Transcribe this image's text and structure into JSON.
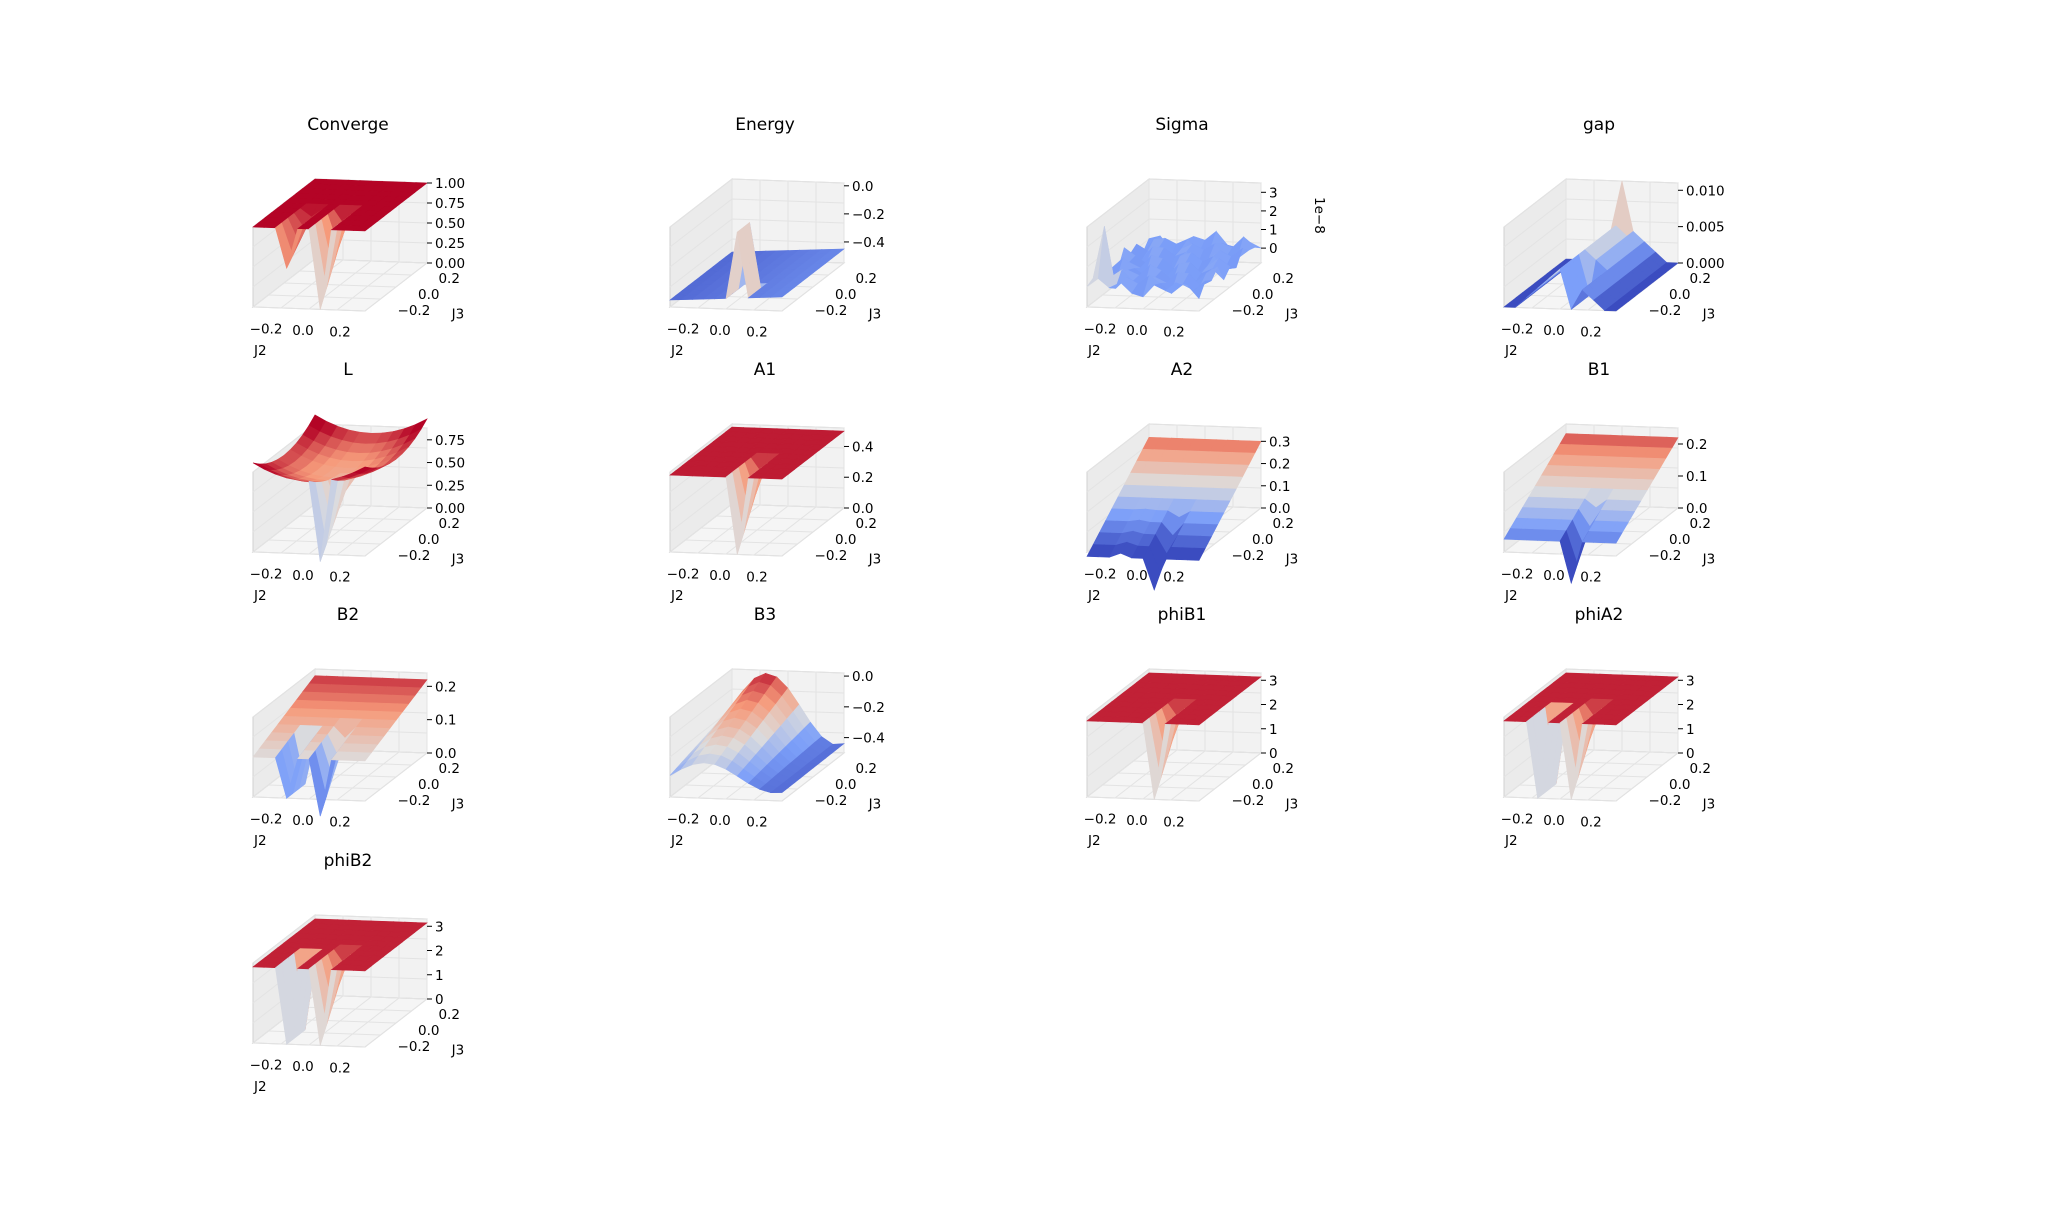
{
  "chart_data": [
    {
      "type": "surface",
      "title": "Converge",
      "xlabel": "J2",
      "ylabel": "J3",
      "x_ticks": [
        "−0.2",
        "0.0",
        "0.2"
      ],
      "y_ticks": [
        "−0.2",
        "0.0",
        "0.2"
      ],
      "z_ticks": [
        "0.00",
        "0.25",
        "0.50",
        "0.75",
        "1.00"
      ],
      "z_range": [
        0,
        1
      ],
      "z_offset_text": "",
      "surface": {
        "kind": "plateau",
        "base": 1.0,
        "dips": [
          {
            "col": 3,
            "depth": 0.5
          },
          {
            "col": 6,
            "depth": 1.0
          }
        ],
        "wall": null
      }
    },
    {
      "type": "surface",
      "title": "Energy",
      "xlabel": "J2",
      "ylabel": "J3",
      "x_ticks": [
        "−0.2",
        "0.0",
        "0.2"
      ],
      "y_ticks": [
        "−0.2",
        "0.0",
        "0.2"
      ],
      "z_ticks": [
        "0.0",
        "−0.2",
        "−0.4"
      ],
      "z_range": [
        -0.55,
        0.02
      ],
      "z_offset_text": "",
      "surface": {
        "kind": "energy",
        "base": -0.5,
        "spike_col": 6,
        "spike_to": 0.0
      }
    },
    {
      "type": "surface",
      "title": "Sigma",
      "xlabel": "J2",
      "ylabel": "J3",
      "x_ticks": [
        "−0.2",
        "0.0",
        "0.2"
      ],
      "y_ticks": [
        "−0.2",
        "0.0",
        "0.2"
      ],
      "z_ticks": [
        "0",
        "1",
        "2",
        "3"
      ],
      "z_range": [
        -0.8,
        3.5
      ],
      "z_offset_text": "1e−8",
      "surface": {
        "kind": "noise",
        "base": 0.3,
        "amp": 0.6,
        "spike_col": 1,
        "spike_row": 1,
        "spike_to": 3.3
      }
    },
    {
      "type": "surface",
      "title": "gap",
      "xlabel": "J2",
      "ylabel": "J3",
      "x_ticks": [
        "−0.2",
        "0.0",
        "0.2"
      ],
      "y_ticks": [
        "−0.2",
        "0.0",
        "0.2"
      ],
      "z_ticks": [
        "0.000",
        "0.005",
        "0.010"
      ],
      "z_range": [
        0,
        0.011
      ],
      "z_offset_text": "",
      "surface": {
        "kind": "ridge",
        "ridge_col": 5,
        "ridge_height": 0.0055,
        "spike_to": 0.011,
        "dip_col": 6
      }
    },
    {
      "type": "surface",
      "title": "L",
      "xlabel": "J2",
      "ylabel": "J3",
      "x_ticks": [
        "−0.2",
        "0.0",
        "0.2"
      ],
      "y_ticks": [
        "−0.2",
        "0.0",
        "0.2"
      ],
      "z_ticks": [
        "0.00",
        "0.25",
        "0.50",
        "0.75"
      ],
      "z_range": [
        0,
        0.88
      ],
      "z_offset_text": "",
      "surface": {
        "kind": "bowl",
        "base": 0.62,
        "curv": 0.18,
        "dips": [
          {
            "col": 6,
            "depth": 0.7
          }
        ],
        "wall": null
      }
    },
    {
      "type": "surface",
      "title": "A1",
      "xlabel": "J2",
      "ylabel": "J3",
      "x_ticks": [
        "−0.2",
        "0.0",
        "0.2"
      ],
      "y_ticks": [
        "−0.2",
        "0.0",
        "0.2"
      ],
      "z_ticks": [
        "0.0",
        "0.2",
        "0.4"
      ],
      "z_range": [
        0,
        0.52
      ],
      "z_offset_text": "",
      "surface": {
        "kind": "plateau",
        "base": 0.5,
        "dips": [
          {
            "col": 6,
            "depth": 0.5
          }
        ],
        "wall": null
      }
    },
    {
      "type": "surface",
      "title": "A2",
      "xlabel": "J2",
      "ylabel": "J3",
      "x_ticks": [
        "−0.2",
        "0.0",
        "0.2"
      ],
      "y_ticks": [
        "−0.2",
        "0.0",
        "0.2"
      ],
      "z_ticks": [
        "0.0",
        "0.1",
        "0.2",
        "0.3"
      ],
      "z_range": [
        0,
        0.36
      ],
      "z_offset_text": "",
      "surface": {
        "kind": "tilt",
        "base": 0.14,
        "slope": 0.16,
        "dips": [
          {
            "col": 3,
            "depth": 0.14
          },
          {
            "col": 6,
            "depth": 0.3
          }
        ],
        "wall": null
      }
    },
    {
      "type": "surface",
      "title": "B1",
      "xlabel": "J2",
      "ylabel": "J3",
      "x_ticks": [
        "−0.2",
        "0.0",
        "0.2"
      ],
      "y_ticks": [
        "−0.2",
        "0.0",
        "0.2"
      ],
      "z_ticks": [
        "0.0",
        "0.1",
        "0.2"
      ],
      "z_range": [
        0,
        0.25
      ],
      "z_offset_text": "",
      "surface": {
        "kind": "tilt",
        "base": 0.13,
        "slope": 0.09,
        "dips": [
          {
            "col": 6,
            "depth": 0.22
          }
        ],
        "wall": null
      }
    },
    {
      "type": "surface",
      "title": "B2",
      "xlabel": "J2",
      "ylabel": "J3",
      "x_ticks": [
        "−0.2",
        "0.0",
        "0.2"
      ],
      "y_ticks": [
        "−0.2",
        "0.0",
        "0.2"
      ],
      "z_ticks": [
        "0.0",
        "0.1",
        "0.2"
      ],
      "z_range": [
        0,
        0.24
      ],
      "z_offset_text": "",
      "surface": {
        "kind": "tilt",
        "base": 0.17,
        "slope": 0.05,
        "dips": [
          {
            "col": 6,
            "depth": 0.22
          }
        ],
        "wall": {
          "col": 3,
          "rows_from": 3,
          "to": 0
        }
      }
    },
    {
      "type": "surface",
      "title": "B3",
      "xlabel": "J2",
      "ylabel": "J3",
      "x_ticks": [
        "−0.2",
        "0.0",
        "0.2"
      ],
      "y_ticks": [
        "−0.2",
        "0.0",
        "0.2"
      ],
      "z_ticks": [
        "0.0",
        "−0.2",
        "−0.4"
      ],
      "z_range": [
        -0.5,
        0.02
      ],
      "z_offset_text": "",
      "surface": {
        "kind": "fold",
        "high": 0.0,
        "low": -0.45
      }
    },
    {
      "type": "surface",
      "title": "phiB1",
      "xlabel": "J2",
      "ylabel": "J3",
      "x_ticks": [
        "−0.2",
        "0.0",
        "0.2"
      ],
      "y_ticks": [
        "−0.2",
        "0.0",
        "0.2"
      ],
      "z_ticks": [
        "0",
        "1",
        "2",
        "3"
      ],
      "z_range": [
        0,
        3.3
      ],
      "z_offset_text": "",
      "surface": {
        "kind": "plateau",
        "base": 3.14,
        "dips": [
          {
            "col": 6,
            "depth": 3.14
          }
        ],
        "wall": null
      }
    },
    {
      "type": "surface",
      "title": "phiA2",
      "xlabel": "J2",
      "ylabel": "J3",
      "x_ticks": [
        "−0.2",
        "0.0",
        "0.2"
      ],
      "y_ticks": [
        "−0.2",
        "0.0",
        "0.2"
      ],
      "z_ticks": [
        "0",
        "1",
        "2",
        "3"
      ],
      "z_range": [
        0,
        3.3
      ],
      "z_offset_text": "",
      "surface": {
        "kind": "plateau",
        "base": 3.14,
        "dips": [
          {
            "col": 6,
            "depth": 3.14
          }
        ],
        "wall": {
          "col": 3,
          "rows_from": 3,
          "to": 0
        }
      }
    },
    {
      "type": "surface",
      "title": "phiB2",
      "xlabel": "J2",
      "ylabel": "J3",
      "x_ticks": [
        "−0.2",
        "0.0",
        "0.2"
      ],
      "y_ticks": [
        "−0.2",
        "0.0",
        "0.2"
      ],
      "z_ticks": [
        "0",
        "1",
        "2",
        "3"
      ],
      "z_range": [
        0,
        3.3
      ],
      "z_offset_text": "",
      "surface": {
        "kind": "plateau",
        "base": 3.14,
        "dips": [
          {
            "col": 6,
            "depth": 3.14
          }
        ],
        "wall": {
          "col": 3,
          "rows_from": 3,
          "to": 0
        }
      }
    }
  ]
}
